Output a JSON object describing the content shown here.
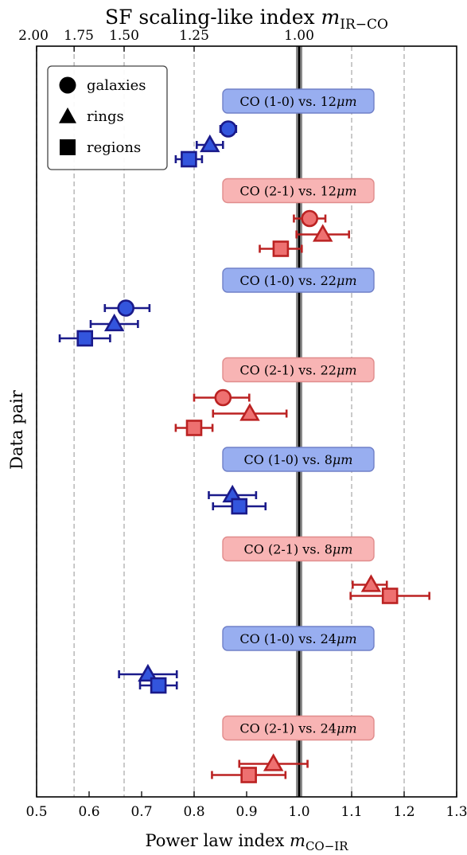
{
  "chart_data": {
    "type": "scatter",
    "title": "SF scaling-like index ",
    "title_math": "m",
    "title_sub": "IR−CO",
    "xlabel": "Power law index ",
    "xlabel_math": "m",
    "xlabel_sub": "CO−IR",
    "ylabel": "Data pair",
    "xlim": [
      0.5,
      1.3
    ],
    "x_ticks": [
      0.5,
      0.6,
      0.7,
      0.8,
      0.9,
      1.0,
      1.1,
      1.2,
      1.3
    ],
    "x_tick_labels": [
      "0.5",
      "0.6",
      "0.7",
      "0.8",
      "0.9",
      "1.0",
      "1.1",
      "1.2",
      "1.3"
    ],
    "top_ticks": [
      {
        "m": 2.0,
        "label": "2.00"
      },
      {
        "m": 1.75,
        "label": "1.75"
      },
      {
        "m": 1.5,
        "label": "1.50"
      },
      {
        "m": 1.25,
        "label": "1.25"
      },
      {
        "m": 1.0,
        "label": "1.00"
      }
    ],
    "grid": "vertical dashed",
    "reference_line_x": 1.0,
    "legend": {
      "placement": "top-left",
      "entries": [
        {
          "marker": "circle",
          "label": "galaxies"
        },
        {
          "marker": "triangle",
          "label": "rings"
        },
        {
          "marker": "square",
          "label": "regions"
        }
      ]
    },
    "colors": {
      "blue_fill": "#3355dd",
      "blue_edge": "#1a1a8a",
      "red_fill": "#ee7070",
      "red_edge": "#bb2222",
      "blue_box": "#98aef0",
      "blue_box_edge": "#7080c8",
      "red_box": "#f8b4b4",
      "red_box_edge": "#e08c8c"
    },
    "groups": [
      {
        "label": "CO (1-0) vs. 12",
        "unit": "μm",
        "color": "blue",
        "points": [
          {
            "kind": "galaxies",
            "x": 0.865,
            "xerr": [
              0.015,
              0.015
            ]
          },
          {
            "kind": "rings",
            "x": 0.83,
            "xerr": [
              0.025,
              0.025
            ]
          },
          {
            "kind": "regions",
            "x": 0.79,
            "xerr": [
              0.025,
              0.025
            ]
          }
        ]
      },
      {
        "label": "CO (2-1) vs. 12",
        "unit": "μm",
        "color": "red",
        "points": [
          {
            "kind": "galaxies",
            "x": 1.02,
            "xerr": [
              0.03,
              0.03
            ]
          },
          {
            "kind": "rings",
            "x": 1.045,
            "xerr": [
              0.05,
              0.05
            ]
          },
          {
            "kind": "regions",
            "x": 0.965,
            "xerr": [
              0.04,
              0.04
            ]
          }
        ]
      },
      {
        "label": "CO (1-0) vs. 22",
        "unit": "μm",
        "color": "blue",
        "points": [
          {
            "kind": "galaxies",
            "x": 0.67,
            "xerr": [
              0.04,
              0.045
            ]
          },
          {
            "kind": "rings",
            "x": 0.648,
            "xerr": [
              0.045,
              0.045
            ]
          },
          {
            "kind": "regions",
            "x": 0.592,
            "xerr": [
              0.048,
              0.048
            ]
          }
        ]
      },
      {
        "label": "CO (2-1) vs. 22",
        "unit": "μm",
        "color": "red",
        "points": [
          {
            "kind": "galaxies",
            "x": 0.855,
            "xerr": [
              0.055,
              0.05
            ]
          },
          {
            "kind": "rings",
            "x": 0.906,
            "xerr": [
              0.07,
              0.07
            ]
          },
          {
            "kind": "regions",
            "x": 0.8,
            "xerr": [
              0.035,
              0.035
            ]
          }
        ]
      },
      {
        "label": "CO (1-0) vs. 8",
        "unit": "μm",
        "color": "blue",
        "points": [
          {
            "kind": "rings",
            "x": 0.873,
            "xerr": [
              0.045,
              0.045
            ]
          },
          {
            "kind": "regions",
            "x": 0.886,
            "xerr": [
              0.05,
              0.05
            ]
          }
        ]
      },
      {
        "label": "CO (2-1) vs. 8",
        "unit": "μm",
        "color": "red",
        "points": [
          {
            "kind": "rings",
            "x": 1.137,
            "xerr": [
              0.035,
              0.03
            ]
          },
          {
            "kind": "regions",
            "x": 1.173,
            "xerr": [
              0.075,
              0.075
            ]
          }
        ]
      },
      {
        "label": "CO (1-0) vs. 24",
        "unit": "μm",
        "color": "blue",
        "points": [
          {
            "kind": "rings",
            "x": 0.712,
            "xerr": [
              0.055,
              0.055
            ]
          },
          {
            "kind": "regions",
            "x": 0.732,
            "xerr": [
              0.035,
              0.035
            ]
          }
        ]
      },
      {
        "label": "CO (2-1) vs. 24",
        "unit": "μm",
        "color": "red",
        "points": [
          {
            "kind": "rings",
            "x": 0.951,
            "xerr": [
              0.065,
              0.065
            ]
          },
          {
            "kind": "regions",
            "x": 0.904,
            "xerr": [
              0.07,
              0.07
            ]
          }
        ]
      }
    ]
  }
}
